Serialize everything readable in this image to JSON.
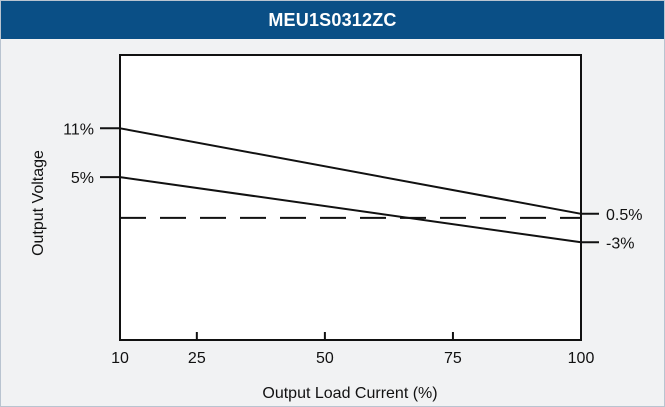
{
  "header": {
    "title": "MEU1S0312ZC"
  },
  "chart_data": {
    "type": "line",
    "title": "MEU1S0312ZC",
    "xlabel": "Output Load Current (%)",
    "ylabel": "Output Voltage",
    "xlim": [
      10,
      100
    ],
    "ylim": [
      -15,
      20
    ],
    "x_ticks": [
      10,
      25,
      50,
      75,
      100
    ],
    "grid": false,
    "series": [
      {
        "style": "solid",
        "x": [
          10,
          100
        ],
        "y": [
          11,
          0.5
        ]
      },
      {
        "style": "solid",
        "x": [
          10,
          100
        ],
        "y": [
          5,
          -3
        ]
      },
      {
        "style": "dashed",
        "x": [
          10,
          100
        ],
        "y": [
          0,
          0
        ]
      }
    ],
    "annotations": [
      {
        "text": "11%",
        "side": "left",
        "y": 11
      },
      {
        "text": "5%",
        "side": "left",
        "y": 5
      },
      {
        "text": "0.5%",
        "side": "right",
        "y": 0.5
      },
      {
        "text": "-3%",
        "side": "right",
        "y": -3
      }
    ]
  }
}
